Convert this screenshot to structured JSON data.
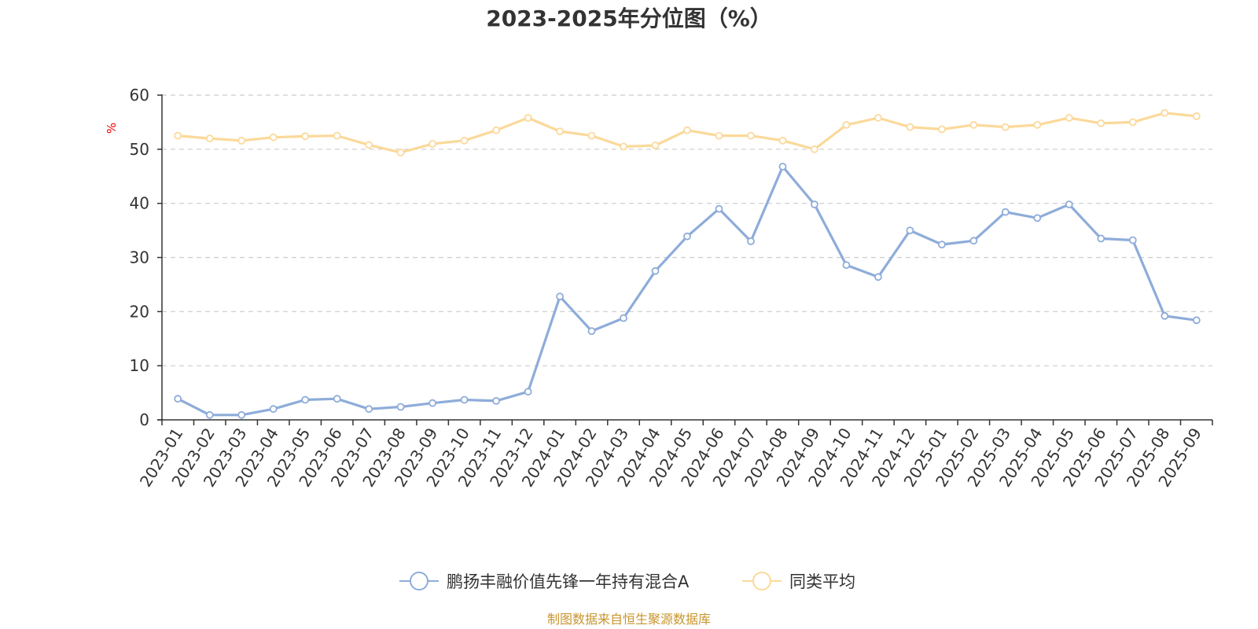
{
  "chart_data": {
    "type": "line",
    "title": "2023-2025年分位图（%）",
    "ylabel": "%",
    "xlabel": "",
    "ylim": [
      0,
      60
    ],
    "yticks": [
      0,
      10,
      20,
      30,
      40,
      50,
      60
    ],
    "grid": true,
    "legend_position": "bottom-center",
    "categories": [
      "2023-01",
      "2023-02",
      "2023-03",
      "2023-04",
      "2023-05",
      "2023-06",
      "2023-07",
      "2023-08",
      "2023-09",
      "2023-10",
      "2023-11",
      "2023-12",
      "2024-01",
      "2024-02",
      "2024-03",
      "2024-04",
      "2024-05",
      "2024-06",
      "2024-07",
      "2024-08",
      "2024-09",
      "2024-10",
      "2024-11",
      "2024-12",
      "2025-01",
      "2025-02",
      "2025-03",
      "2025-04",
      "2025-05",
      "2025-06",
      "2025-07",
      "2025-08",
      "2025-09"
    ],
    "series": [
      {
        "name": "鹏扬丰融价值先锋一年持有混合A",
        "color": "#8eacd9",
        "values": [
          3.9,
          0.9,
          0.9,
          2.0,
          3.7,
          3.9,
          2.0,
          2.4,
          3.1,
          3.7,
          3.5,
          5.2,
          22.8,
          16.4,
          18.8,
          27.5,
          33.9,
          39.0,
          33.0,
          46.8,
          39.8,
          28.6,
          26.4,
          35.0,
          32.4,
          33.1,
          38.4,
          37.3,
          39.8,
          33.5,
          33.2,
          19.2,
          18.4
        ]
      },
      {
        "name": "同类平均",
        "color": "#fbd99a",
        "values": [
          52.5,
          52.0,
          51.6,
          52.2,
          52.4,
          52.5,
          50.8,
          49.4,
          51.0,
          51.6,
          53.5,
          55.8,
          53.3,
          52.5,
          50.5,
          50.7,
          53.5,
          52.5,
          52.5,
          51.6,
          50.0,
          54.5,
          55.8,
          54.1,
          53.7,
          54.5,
          54.1,
          54.5,
          55.8,
          54.8,
          55.0,
          56.7,
          56.1
        ]
      }
    ]
  },
  "source_text": "制图数据来自恒生聚源数据库",
  "colors": {
    "axis": "#333333",
    "grid": "#cccccc",
    "unit": "#ee0000",
    "source": "#c8952e"
  }
}
